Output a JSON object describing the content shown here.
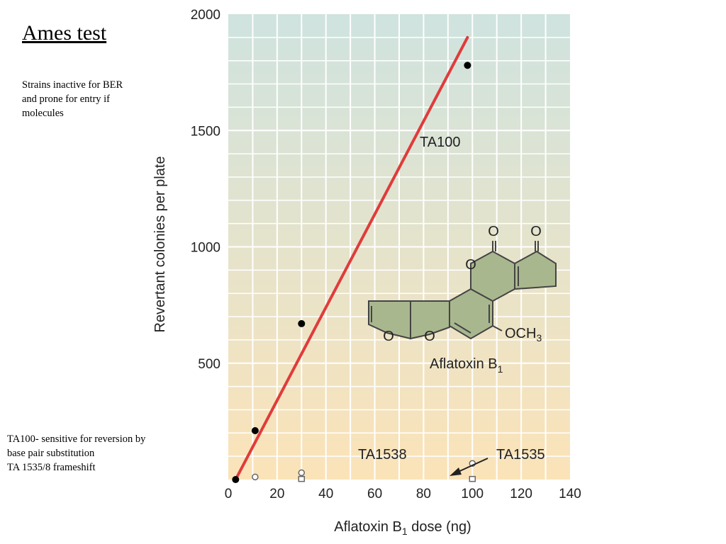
{
  "slide": {
    "title": "Ames test",
    "note_top": "Strains inactive for BER and prone for entry if molecules",
    "note_bottom": [
      "TA100- sensitive for reversion by",
      "base pair substitution",
      "TA 1535/8 frameshift"
    ]
  },
  "chart_data": {
    "type": "scatter",
    "title": "",
    "xlabel": "Aflatoxin B₁ dose (ng)",
    "ylabel": "Revertant colonies per plate",
    "xlim": [
      0,
      140
    ],
    "ylim": [
      0,
      2000
    ],
    "x_ticks": [
      "0",
      "20",
      "40",
      "60",
      "80",
      "100",
      "120",
      "140"
    ],
    "y_ticks": [
      "500",
      "1000",
      "1500",
      "2000"
    ],
    "grid": true,
    "series": [
      {
        "name": "TA100",
        "marker": "filled-circle",
        "color": "#000000",
        "points": [
          [
            3,
            0
          ],
          [
            11,
            210
          ],
          [
            30,
            670
          ],
          [
            98,
            1780
          ]
        ],
        "fit_line": {
          "from": [
            3,
            0
          ],
          "to": [
            98,
            1900
          ],
          "color": "#e03b3b"
        }
      },
      {
        "name": "TA1538",
        "marker": "open-circle",
        "color": "#666666",
        "points": [
          [
            11,
            2
          ],
          [
            30,
            20
          ],
          [
            100,
            60
          ]
        ]
      },
      {
        "name": "TA1535",
        "marker": "open-square",
        "color": "#666666",
        "points": [
          [
            30,
            1
          ],
          [
            100,
            1
          ]
        ]
      }
    ],
    "annotations": [
      {
        "text": "TA100"
      },
      {
        "text": "TA1538"
      },
      {
        "text": "TA1535"
      }
    ],
    "structure": {
      "name": "Aflatoxin B",
      "name_sub": "1",
      "oxygen": "O",
      "methoxy": "OCH",
      "methoxy_sub": "3"
    },
    "colors": {
      "bg_top": "#cfe3df",
      "bg_bottom": "#fbe3b8",
      "grid": "#ffffff",
      "fit_line": "#e03b3b",
      "molecule_fill": "#a9b78f"
    }
  }
}
